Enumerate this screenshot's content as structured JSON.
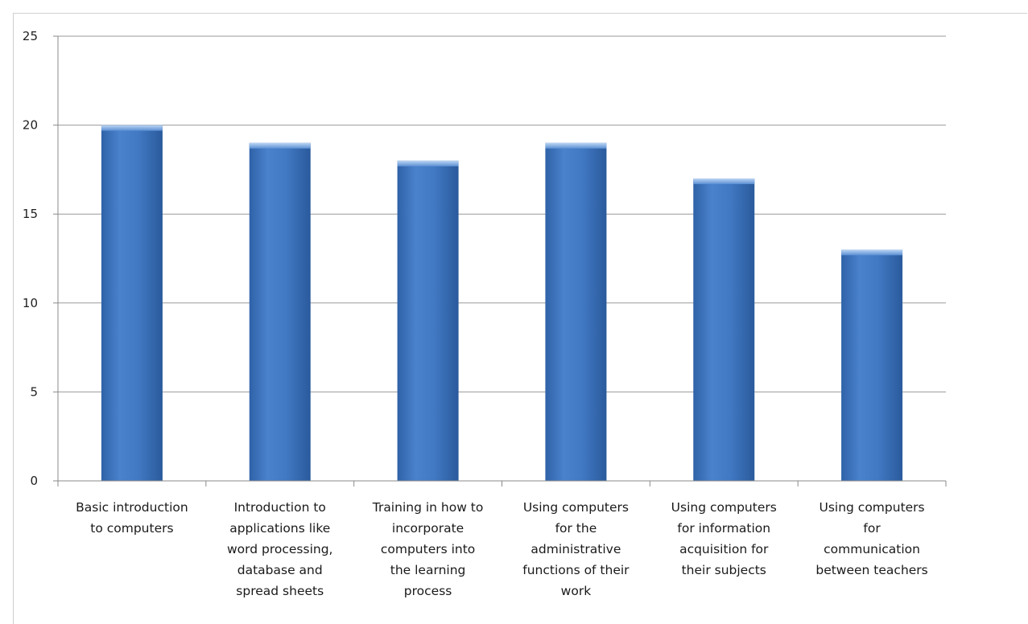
{
  "chart_data": {
    "type": "bar",
    "title": "",
    "xlabel": "",
    "ylabel": "",
    "ylim": [
      0,
      25
    ],
    "yticks": [
      0,
      5,
      10,
      15,
      20,
      25
    ],
    "grid": true,
    "legend": "none",
    "bar_color": "#3f77c0",
    "bar_color_light": "#6f9fdd",
    "bar_color_dark": "#2c5e9e",
    "categories": [
      "Basic introduction\nto computers",
      "Introduction to\napplications like\nword processing,\ndatabase and\nspread sheets",
      "Training in how to\nincorporate\ncomputers into\nthe learning\nprocess",
      "Using computers\nfor the\nadministrative\nfunctions of their\nwork",
      "Using computers\nfor information\nacquisition for\ntheir subjects",
      "Using computers\nfor\ncommunication\nbetween teachers"
    ],
    "values": [
      20,
      19,
      18,
      19,
      17,
      13
    ]
  }
}
